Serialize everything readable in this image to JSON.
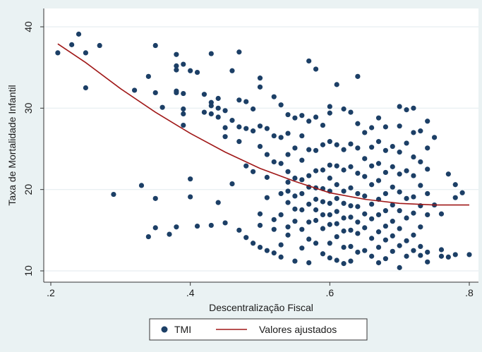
{
  "colors": {
    "background": "#eaf2f3",
    "plot_background": "#ffffff",
    "points": "#1c3f66",
    "fit_line": "#a01818",
    "grid": "#e6eef0",
    "axis": "#333333"
  },
  "chart_data": {
    "type": "scatter",
    "title": "",
    "xlabel": "Descentralização Fiscal",
    "ylabel": "Taxa de Mortalidade Infantil",
    "xlim": [
      0.2,
      0.8
    ],
    "ylim": [
      10,
      40
    ],
    "x_ticks": [
      ".2",
      ".4",
      ".6",
      ".8"
    ],
    "y_ticks": [
      "10",
      "20",
      "30",
      "40"
    ],
    "grid": true,
    "legend": {
      "position": "bottom",
      "items": [
        {
          "label": "TMI",
          "marker": "dot"
        },
        {
          "label": "Valores ajustados",
          "marker": "line"
        }
      ]
    },
    "series": [
      {
        "name": "TMI",
        "type": "scatter",
        "points": [
          [
            0.21,
            36.8
          ],
          [
            0.23,
            37.8
          ],
          [
            0.24,
            39.1
          ],
          [
            0.25,
            36.8
          ],
          [
            0.25,
            32.5
          ],
          [
            0.27,
            37.7
          ],
          [
            0.29,
            19.4
          ],
          [
            0.32,
            32.2
          ],
          [
            0.33,
            20.5
          ],
          [
            0.34,
            14.2
          ],
          [
            0.34,
            33.9
          ],
          [
            0.35,
            37.7
          ],
          [
            0.35,
            31.9
          ],
          [
            0.35,
            18.9
          ],
          [
            0.35,
            15.3
          ],
          [
            0.36,
            30.1
          ],
          [
            0.37,
            14.5
          ],
          [
            0.38,
            36.6
          ],
          [
            0.38,
            35.2
          ],
          [
            0.38,
            34.7
          ],
          [
            0.38,
            32.1
          ],
          [
            0.38,
            31.9
          ],
          [
            0.38,
            15.4
          ],
          [
            0.39,
            35.4
          ],
          [
            0.39,
            31.8
          ],
          [
            0.39,
            29.9
          ],
          [
            0.39,
            29.3
          ],
          [
            0.39,
            27.9
          ],
          [
            0.4,
            34.6
          ],
          [
            0.4,
            21.3
          ],
          [
            0.4,
            19.1
          ],
          [
            0.41,
            34.4
          ],
          [
            0.41,
            15.5
          ],
          [
            0.42,
            31.7
          ],
          [
            0.42,
            29.5
          ],
          [
            0.43,
            36.7
          ],
          [
            0.43,
            30.7
          ],
          [
            0.43,
            30.3
          ],
          [
            0.43,
            29.3
          ],
          [
            0.43,
            15.6
          ],
          [
            0.44,
            31.2
          ],
          [
            0.44,
            30.0
          ],
          [
            0.44,
            28.9
          ],
          [
            0.44,
            18.4
          ],
          [
            0.45,
            15.9
          ],
          [
            0.45,
            29.7
          ],
          [
            0.45,
            27.6
          ],
          [
            0.45,
            26.5
          ],
          [
            0.46,
            34.6
          ],
          [
            0.46,
            28.5
          ],
          [
            0.46,
            20.7
          ],
          [
            0.47,
            36.9
          ],
          [
            0.47,
            31.0
          ],
          [
            0.47,
            27.7
          ],
          [
            0.47,
            25.9
          ],
          [
            0.47,
            15.0
          ],
          [
            0.48,
            30.8
          ],
          [
            0.48,
            27.5
          ],
          [
            0.48,
            22.9
          ],
          [
            0.48,
            14.1
          ],
          [
            0.49,
            29.9
          ],
          [
            0.49,
            27.2
          ],
          [
            0.49,
            22.2
          ],
          [
            0.49,
            13.4
          ],
          [
            0.5,
            33.7
          ],
          [
            0.5,
            32.6
          ],
          [
            0.5,
            27.8
          ],
          [
            0.5,
            25.3
          ],
          [
            0.5,
            17.0
          ],
          [
            0.5,
            15.6
          ],
          [
            0.5,
            12.9
          ],
          [
            0.51,
            27.5
          ],
          [
            0.51,
            24.3
          ],
          [
            0.51,
            21.5
          ],
          [
            0.51,
            19.0
          ],
          [
            0.51,
            12.5
          ],
          [
            0.52,
            31.4
          ],
          [
            0.52,
            26.6
          ],
          [
            0.52,
            23.4
          ],
          [
            0.52,
            16.3
          ],
          [
            0.52,
            15.1
          ],
          [
            0.52,
            12.2
          ],
          [
            0.53,
            30.4
          ],
          [
            0.53,
            26.4
          ],
          [
            0.53,
            23.2
          ],
          [
            0.53,
            19.5
          ],
          [
            0.53,
            16.9
          ],
          [
            0.53,
            13.2
          ],
          [
            0.53,
            11.7
          ],
          [
            0.54,
            29.2
          ],
          [
            0.54,
            26.9
          ],
          [
            0.54,
            24.3
          ],
          [
            0.54,
            22.2
          ],
          [
            0.54,
            20.9
          ],
          [
            0.54,
            19.8
          ],
          [
            0.54,
            18.4
          ],
          [
            0.54,
            15.4
          ],
          [
            0.54,
            14.4
          ],
          [
            0.55,
            28.8
          ],
          [
            0.55,
            25.1
          ],
          [
            0.55,
            21.4
          ],
          [
            0.55,
            19.2
          ],
          [
            0.55,
            17.6
          ],
          [
            0.55,
            16.1
          ],
          [
            0.55,
            11.2
          ],
          [
            0.56,
            29.1
          ],
          [
            0.56,
            26.6
          ],
          [
            0.56,
            23.6
          ],
          [
            0.56,
            21.2
          ],
          [
            0.56,
            19.5
          ],
          [
            0.56,
            17.5
          ],
          [
            0.56,
            15.1
          ],
          [
            0.56,
            12.8
          ],
          [
            0.57,
            35.8
          ],
          [
            0.57,
            28.4
          ],
          [
            0.57,
            24.9
          ],
          [
            0.57,
            21.7
          ],
          [
            0.57,
            20.3
          ],
          [
            0.57,
            18.2
          ],
          [
            0.57,
            16.0
          ],
          [
            0.57,
            13.9
          ],
          [
            0.57,
            11.0
          ],
          [
            0.58,
            34.8
          ],
          [
            0.58,
            28.9
          ],
          [
            0.58,
            24.8
          ],
          [
            0.58,
            22.3
          ],
          [
            0.58,
            20.2
          ],
          [
            0.58,
            18.8
          ],
          [
            0.58,
            17.5
          ],
          [
            0.58,
            16.2
          ],
          [
            0.58,
            13.4
          ],
          [
            0.59,
            27.9
          ],
          [
            0.59,
            25.5
          ],
          [
            0.59,
            22.4
          ],
          [
            0.59,
            20.1
          ],
          [
            0.59,
            18.5
          ],
          [
            0.59,
            16.9
          ],
          [
            0.59,
            15.2
          ],
          [
            0.59,
            12.1
          ],
          [
            0.6,
            30.2
          ],
          [
            0.6,
            29.4
          ],
          [
            0.6,
            25.9
          ],
          [
            0.6,
            23.0
          ],
          [
            0.6,
            21.4
          ],
          [
            0.6,
            19.8
          ],
          [
            0.6,
            18.3
          ],
          [
            0.6,
            16.9
          ],
          [
            0.6,
            15.7
          ],
          [
            0.6,
            13.4
          ],
          [
            0.6,
            11.6
          ],
          [
            0.61,
            32.9
          ],
          [
            0.61,
            25.5
          ],
          [
            0.61,
            22.9
          ],
          [
            0.61,
            20.6
          ],
          [
            0.61,
            18.9
          ],
          [
            0.61,
            17.3
          ],
          [
            0.61,
            15.8
          ],
          [
            0.61,
            14.2
          ],
          [
            0.61,
            11.3
          ],
          [
            0.62,
            29.9
          ],
          [
            0.62,
            24.9
          ],
          [
            0.62,
            22.4
          ],
          [
            0.62,
            19.8
          ],
          [
            0.62,
            18.3
          ],
          [
            0.62,
            16.5
          ],
          [
            0.62,
            14.9
          ],
          [
            0.62,
            12.9
          ],
          [
            0.62,
            10.9
          ],
          [
            0.63,
            29.5
          ],
          [
            0.63,
            25.6
          ],
          [
            0.63,
            22.8
          ],
          [
            0.63,
            20.2
          ],
          [
            0.63,
            18.0
          ],
          [
            0.63,
            16.6
          ],
          [
            0.63,
            15.0
          ],
          [
            0.63,
            13.0
          ],
          [
            0.63,
            11.2
          ],
          [
            0.64,
            33.9
          ],
          [
            0.64,
            28.1
          ],
          [
            0.64,
            25.1
          ],
          [
            0.64,
            22.0
          ],
          [
            0.64,
            19.5
          ],
          [
            0.64,
            17.9
          ],
          [
            0.64,
            16.0
          ],
          [
            0.64,
            14.6
          ],
          [
            0.64,
            12.3
          ],
          [
            0.65,
            27.0
          ],
          [
            0.65,
            23.8
          ],
          [
            0.65,
            21.6
          ],
          [
            0.65,
            19.2
          ],
          [
            0.65,
            17.0
          ],
          [
            0.65,
            15.3
          ],
          [
            0.65,
            12.5
          ],
          [
            0.66,
            27.6
          ],
          [
            0.66,
            25.2
          ],
          [
            0.66,
            22.9
          ],
          [
            0.66,
            20.6
          ],
          [
            0.66,
            18.2
          ],
          [
            0.66,
            16.4
          ],
          [
            0.66,
            14.0
          ],
          [
            0.66,
            11.8
          ],
          [
            0.67,
            28.8
          ],
          [
            0.67,
            25.9
          ],
          [
            0.67,
            23.2
          ],
          [
            0.67,
            21.1
          ],
          [
            0.67,
            18.8
          ],
          [
            0.67,
            16.9
          ],
          [
            0.67,
            14.8
          ],
          [
            0.67,
            12.9
          ],
          [
            0.67,
            11.0
          ],
          [
            0.68,
            27.7
          ],
          [
            0.68,
            24.8
          ],
          [
            0.68,
            22.1
          ],
          [
            0.68,
            19.5
          ],
          [
            0.68,
            17.4
          ],
          [
            0.68,
            15.5
          ],
          [
            0.68,
            13.8
          ],
          [
            0.68,
            11.5
          ],
          [
            0.69,
            25.3
          ],
          [
            0.69,
            22.8
          ],
          [
            0.69,
            20.3
          ],
          [
            0.69,
            18.1
          ],
          [
            0.69,
            16.1
          ],
          [
            0.69,
            14.3
          ],
          [
            0.69,
            12.4
          ],
          [
            0.7,
            30.2
          ],
          [
            0.7,
            27.8
          ],
          [
            0.7,
            24.6
          ],
          [
            0.7,
            21.9
          ],
          [
            0.7,
            19.7
          ],
          [
            0.7,
            17.4
          ],
          [
            0.7,
            15.2
          ],
          [
            0.7,
            13.1
          ],
          [
            0.7,
            10.4
          ],
          [
            0.71,
            29.8
          ],
          [
            0.71,
            25.7
          ],
          [
            0.71,
            22.3
          ],
          [
            0.71,
            18.9
          ],
          [
            0.71,
            16.5
          ],
          [
            0.71,
            13.7
          ],
          [
            0.71,
            11.8
          ],
          [
            0.72,
            30.0
          ],
          [
            0.72,
            27.0
          ],
          [
            0.72,
            24.0
          ],
          [
            0.72,
            21.7
          ],
          [
            0.72,
            19.1
          ],
          [
            0.72,
            17.1
          ],
          [
            0.72,
            14.4
          ],
          [
            0.72,
            12.5
          ],
          [
            0.73,
            27.2
          ],
          [
            0.73,
            23.4
          ],
          [
            0.73,
            20.5
          ],
          [
            0.73,
            18.0
          ],
          [
            0.73,
            15.4
          ],
          [
            0.73,
            13.0
          ],
          [
            0.73,
            11.9
          ],
          [
            0.74,
            28.4
          ],
          [
            0.74,
            25.1
          ],
          [
            0.74,
            22.5
          ],
          [
            0.74,
            19.5
          ],
          [
            0.74,
            16.9
          ],
          [
            0.74,
            12.3
          ],
          [
            0.74,
            11.1
          ],
          [
            0.75,
            26.4
          ],
          [
            0.75,
            18.1
          ],
          [
            0.76,
            12.6
          ],
          [
            0.76,
            11.8
          ],
          [
            0.76,
            17.0
          ],
          [
            0.77,
            21.9
          ],
          [
            0.77,
            11.7
          ],
          [
            0.78,
            20.6
          ],
          [
            0.78,
            19.0
          ],
          [
            0.78,
            12.0
          ],
          [
            0.79,
            19.6
          ],
          [
            0.8,
            12.0
          ]
        ]
      },
      {
        "name": "Valores ajustados",
        "type": "line",
        "x": [
          0.21,
          0.25,
          0.3,
          0.35,
          0.4,
          0.45,
          0.5,
          0.55,
          0.6,
          0.65,
          0.7,
          0.75,
          0.8
        ],
        "y": [
          37.9,
          35.6,
          32.4,
          29.5,
          26.9,
          24.6,
          22.6,
          21.0,
          19.6,
          18.8,
          18.3,
          18.1,
          18.1
        ]
      }
    ]
  }
}
